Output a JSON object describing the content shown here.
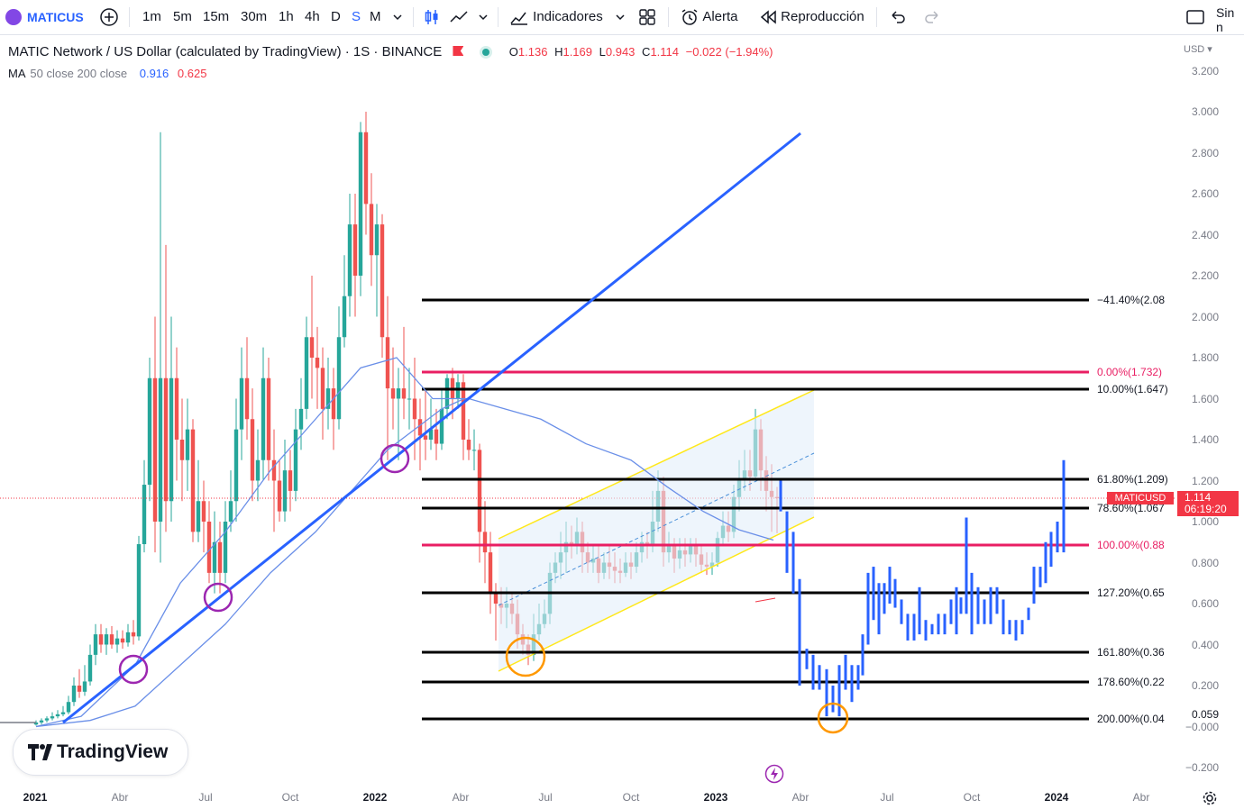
{
  "toolbar": {
    "symbol": "MATICUS",
    "timeframes": [
      "1m",
      "5m",
      "15m",
      "30m",
      "1h",
      "4h",
      "D",
      "S",
      "M"
    ],
    "active_timeframe": "S",
    "indicators_label": "Indicadores",
    "alert_label": "Alerta",
    "replay_label": "Reproducción",
    "right_label": "Sin n",
    "brand_color": "#8247e5",
    "accent_color": "#2962ff"
  },
  "legend": {
    "title": "MATIC Network / US Dollar (calculated by TradingView) · 1S · BINANCE",
    "open_label": "O",
    "open": "1.136",
    "high_label": "H",
    "high": "1.169",
    "low_label": "L",
    "low": "0.943",
    "close_label": "C",
    "close": "1.114",
    "change": "−0.022 (−1.94%)",
    "ma_label": "MA",
    "ma_params": "50 close 200 close",
    "ma50": "0.916",
    "ma200": "0.625",
    "ma50_color": "#2962ff",
    "ma200_color": "#f23645"
  },
  "price_axis": {
    "currency": "USD",
    "ticks": [
      "3.200",
      "3.000",
      "2.800",
      "2.600",
      "2.400",
      "2.200",
      "2.000",
      "1.800",
      "1.600",
      "1.400",
      "1.200",
      "1.000",
      "0.800",
      "0.600",
      "0.400",
      "0.200",
      "0.059",
      "−0.000",
      "−0.200"
    ]
  },
  "time_axis": {
    "labels": [
      {
        "text": "2021",
        "bold": true
      },
      {
        "text": "Abr",
        "bold": false
      },
      {
        "text": "Jul",
        "bold": false
      },
      {
        "text": "Oct",
        "bold": false
      },
      {
        "text": "2022",
        "bold": true
      },
      {
        "text": "Abr",
        "bold": false
      },
      {
        "text": "Jul",
        "bold": false
      },
      {
        "text": "Oct",
        "bold": false
      },
      {
        "text": "2023",
        "bold": true
      },
      {
        "text": "Abr",
        "bold": false
      },
      {
        "text": "Jul",
        "bold": false
      },
      {
        "text": "Oct",
        "bold": false
      },
      {
        "text": "2024",
        "bold": true
      },
      {
        "text": "Abr",
        "bold": false
      }
    ]
  },
  "fib_levels": [
    {
      "label": "−41.40%(2.08",
      "value": 2.08,
      "color": "#000000"
    },
    {
      "label": "0.00%(1.732)",
      "value": 1.732,
      "color": "#e91e63"
    },
    {
      "label": "10.00%(1.647)",
      "value": 1.647,
      "color": "#000000"
    },
    {
      "label": "61.80%(1.209)",
      "value": 1.209,
      "color": "#000000"
    },
    {
      "label": "78.60%(1.067",
      "value": 1.067,
      "color": "#000000"
    },
    {
      "label": "100.00%(0.88",
      "value": 0.886,
      "color": "#e91e63"
    },
    {
      "label": "127.20%(0.65",
      "value": 0.656,
      "color": "#000000"
    },
    {
      "label": "161.80%(0.36",
      "value": 0.364,
      "color": "#000000"
    },
    {
      "label": "178.60%(0.22",
      "value": 0.221,
      "color": "#000000"
    },
    {
      "label": "200.00%(0.04",
      "value": 0.04,
      "color": "#000000"
    }
  ],
  "last_price": {
    "symbol": "MATICUSD",
    "price": "1.114",
    "countdown": "06:19:20",
    "color": "#f23645"
  },
  "branding": {
    "logo_text": "TradingView"
  },
  "chart_data": {
    "type": "candlestick",
    "title": "MATIC Network / US Dollar (calculated by TradingView) · 1S · BINANCE",
    "ylim": [
      -0.2,
      3.2
    ],
    "x_range": [
      "2021",
      "2024"
    ],
    "up_color": "#26a69a",
    "down_color": "#ef5350",
    "series": [
      {
        "name": "MATICUSD",
        "points": [
          {
            "date": "2021-01",
            "close": 0.02
          },
          {
            "date": "2021-02",
            "close": 0.1
          },
          {
            "date": "2021-03",
            "close": 0.35
          },
          {
            "date": "2021-04",
            "close": 0.45
          },
          {
            "date": "2021-05",
            "close": 1.6
          },
          {
            "date": "2021-05b",
            "close": 1.9
          },
          {
            "date": "2021-06",
            "close": 1.25
          },
          {
            "date": "2021-07",
            "close": 0.8
          },
          {
            "date": "2021-08",
            "close": 1.3
          },
          {
            "date": "2021-09",
            "close": 1.5
          },
          {
            "date": "2021-10",
            "close": 1.2
          },
          {
            "date": "2021-11",
            "close": 1.9
          },
          {
            "date": "2021-12",
            "close": 2.6
          },
          {
            "date": "2021-12b",
            "close": 2.9
          },
          {
            "date": "2022-01",
            "close": 2.2
          },
          {
            "date": "2022-02",
            "close": 1.6
          },
          {
            "date": "2022-03",
            "close": 1.5
          },
          {
            "date": "2022-04",
            "close": 1.3
          },
          {
            "date": "2022-05",
            "close": 0.6
          },
          {
            "date": "2022-06",
            "close": 0.35
          },
          {
            "date": "2022-07",
            "close": 0.85
          },
          {
            "date": "2022-08",
            "close": 0.9
          },
          {
            "date": "2022-09",
            "close": 0.8
          },
          {
            "date": "2022-10",
            "close": 0.85
          },
          {
            "date": "2022-11",
            "close": 0.8
          },
          {
            "date": "2022-12",
            "close": 0.78
          },
          {
            "date": "2023-01",
            "close": 1.0
          },
          {
            "date": "2023-02",
            "close": 1.4
          },
          {
            "date": "2023-03",
            "close": 1.114
          }
        ]
      },
      {
        "name": "MA 50",
        "value": 0.916
      },
      {
        "name": "MA 200",
        "value": 0.625
      }
    ],
    "projection_bars": [
      {
        "x": "2023-04",
        "low": 0.2,
        "high": 0.7
      },
      {
        "x": "2023-05",
        "low": 0.05,
        "high": 0.35
      },
      {
        "x": "2023-06",
        "low": 0.4,
        "high": 0.75
      },
      {
        "x": "2023-08",
        "low": 0.45,
        "high": 0.7
      },
      {
        "x": "2023-10",
        "low": 0.5,
        "high": 1.0
      },
      {
        "x": "2023-11",
        "low": 0.5,
        "high": 0.7
      },
      {
        "x": "2023-12",
        "low": 0.6,
        "high": 0.9
      },
      {
        "x": "2024-01",
        "low": 0.9,
        "high": 1.3
      }
    ]
  }
}
